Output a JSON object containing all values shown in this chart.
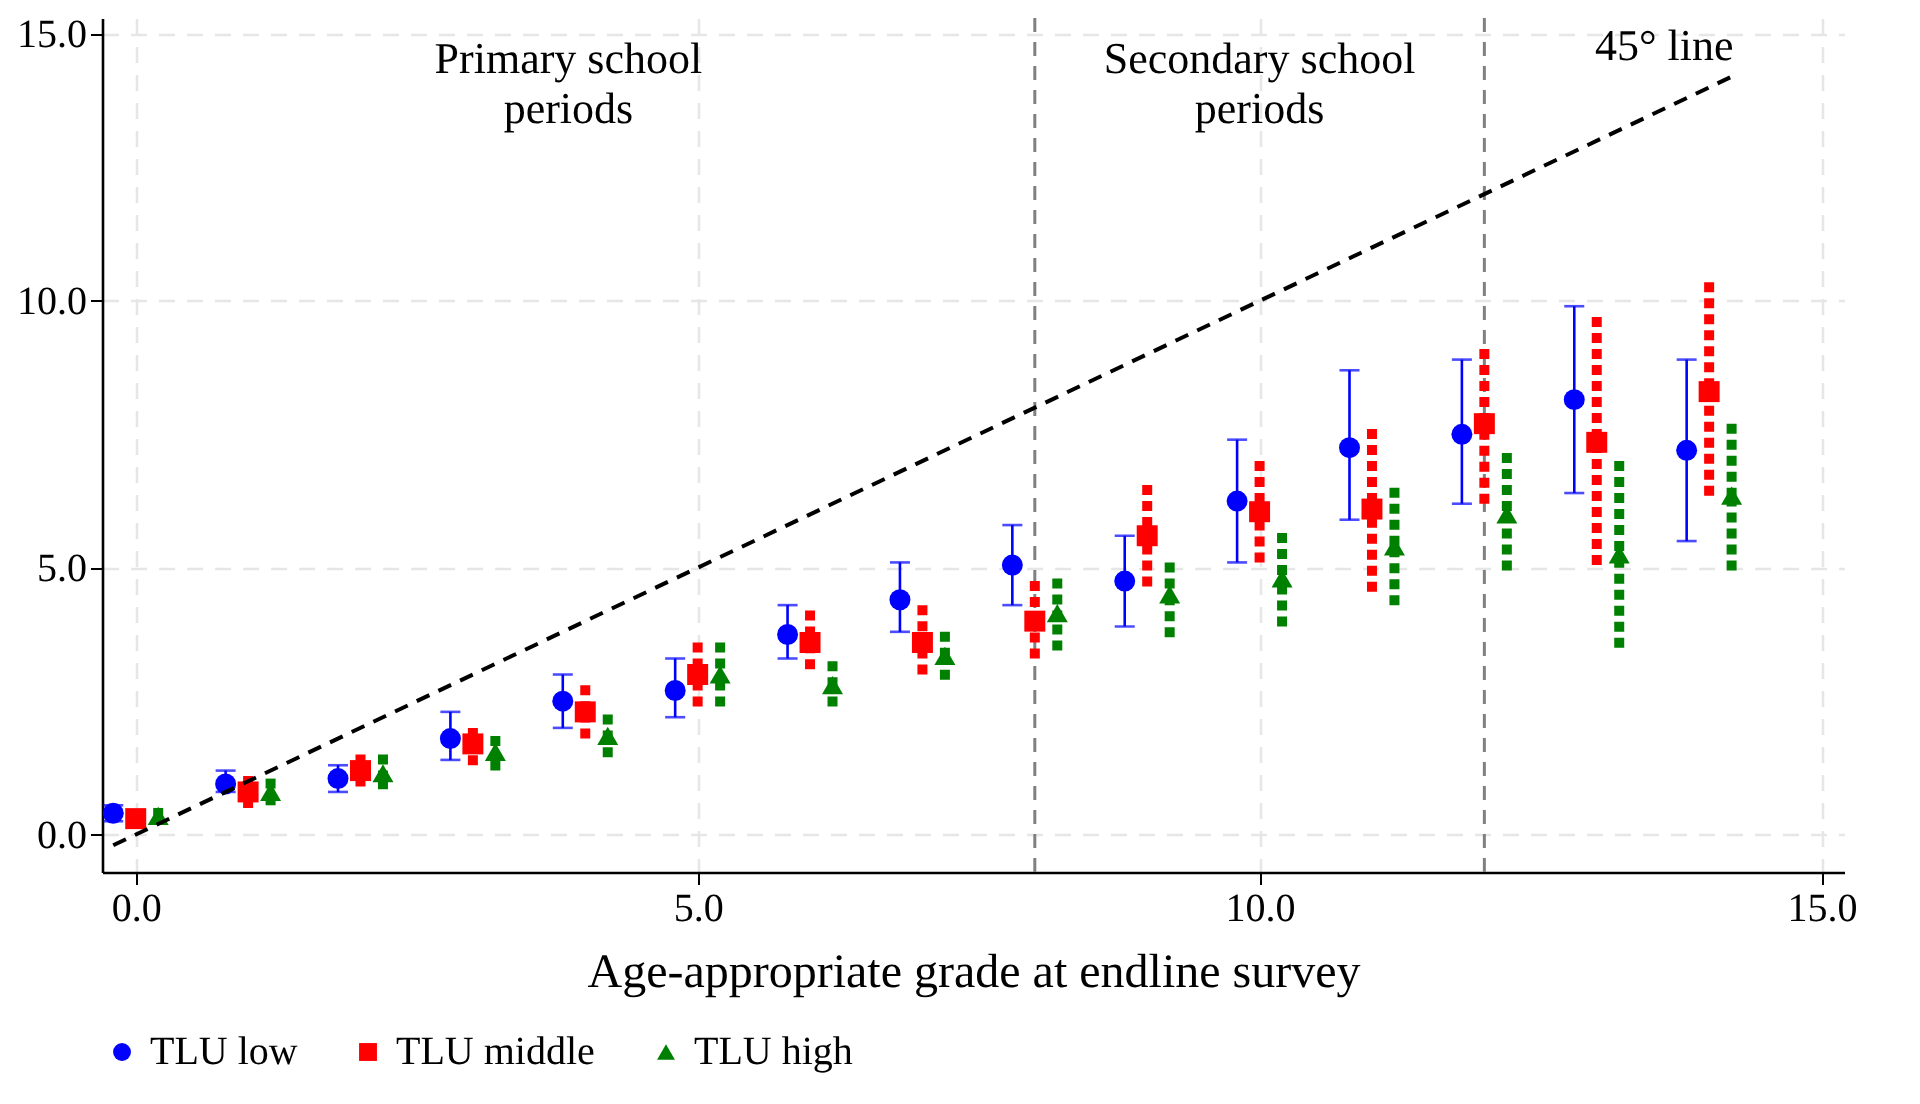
{
  "chart_data": {
    "type": "scatter",
    "xlabel": "Age-appropriate grade at endline survey",
    "xlim": [
      -0.3,
      15.2
    ],
    "ylim": [
      -0.7,
      15.3
    ],
    "xticks": [
      {
        "value": 0,
        "label": "0.0"
      },
      {
        "value": 5,
        "label": "5.0"
      },
      {
        "value": 10,
        "label": "10.0"
      },
      {
        "value": 15,
        "label": "15.0"
      }
    ],
    "yticks": [
      {
        "value": 0,
        "label": "0.0"
      },
      {
        "value": 5,
        "label": "5.0"
      },
      {
        "value": 10,
        "label": "10.0"
      },
      {
        "value": 15,
        "label": "15.0"
      }
    ],
    "grid": true,
    "legend": "bottom",
    "series": [
      {
        "name": "TLU low",
        "color": "#0000ff",
        "marker": "circle",
        "line_style": "solid",
        "x": [
          -0.2,
          0.8,
          1.8,
          2.8,
          3.8,
          4.8,
          5.8,
          6.8,
          7.8,
          8.8,
          9.8,
          10.8,
          11.8,
          12.8,
          13.8
        ],
        "values": [
          0.4,
          0.95,
          1.05,
          1.8,
          2.5,
          2.7,
          3.75,
          4.4,
          5.05,
          4.75,
          6.25,
          7.25,
          7.5,
          8.15,
          7.2
        ],
        "errors": [
          [
            0.25,
            0.55
          ],
          [
            0.8,
            1.2
          ],
          [
            0.8,
            1.3
          ],
          [
            1.4,
            2.3
          ],
          [
            2.0,
            3.0
          ],
          [
            2.2,
            3.3
          ],
          [
            3.3,
            4.3
          ],
          [
            3.8,
            5.1
          ],
          [
            4.3,
            5.8
          ],
          [
            3.9,
            5.6
          ],
          [
            5.1,
            7.4
          ],
          [
            5.9,
            8.7
          ],
          [
            6.2,
            8.9
          ],
          [
            6.4,
            9.9
          ],
          [
            5.5,
            8.9
          ]
        ]
      },
      {
        "name": "TLU middle",
        "color": "#ff0000",
        "marker": "square",
        "line_style": "dashed",
        "x": [
          0,
          1,
          2,
          3,
          4,
          5,
          6,
          7,
          8,
          9,
          10,
          11,
          12,
          13,
          14
        ],
        "values": [
          0.3,
          0.8,
          1.2,
          1.7,
          2.3,
          3.0,
          3.6,
          3.6,
          4.0,
          5.6,
          6.05,
          6.1,
          7.7,
          7.35,
          8.3
        ],
        "errors": [
          [
            0.15,
            0.45
          ],
          [
            0.5,
            1.1
          ],
          [
            0.9,
            1.5
          ],
          [
            1.3,
            2.0
          ],
          [
            1.8,
            2.8
          ],
          [
            2.4,
            3.6
          ],
          [
            3.1,
            4.2
          ],
          [
            3.0,
            4.3
          ],
          [
            3.3,
            4.75
          ],
          [
            4.65,
            6.55
          ],
          [
            5.1,
            7.0
          ],
          [
            4.55,
            7.6
          ],
          [
            6.2,
            9.1
          ],
          [
            5.05,
            9.7
          ],
          [
            6.35,
            10.35
          ]
        ]
      },
      {
        "name": "TLU high",
        "color": "#008000",
        "marker": "triangle",
        "line_style": "dashed",
        "x": [
          0.2,
          1.2,
          2.2,
          3.2,
          4.2,
          5.2,
          6.2,
          7.2,
          8.2,
          9.2,
          10.2,
          11.2,
          12.2,
          13.2,
          14.2
        ],
        "values": [
          0.35,
          0.8,
          1.15,
          1.55,
          1.85,
          3.0,
          2.8,
          3.35,
          4.15,
          4.5,
          4.8,
          5.4,
          6.0,
          5.25,
          6.35
        ],
        "errors": [
          [
            0.2,
            0.5
          ],
          [
            0.55,
            1.05
          ],
          [
            0.85,
            1.5
          ],
          [
            1.2,
            1.85
          ],
          [
            1.45,
            2.25
          ],
          [
            2.4,
            3.6
          ],
          [
            2.4,
            3.25
          ],
          [
            2.9,
            3.8
          ],
          [
            3.45,
            4.8
          ],
          [
            3.7,
            5.1
          ],
          [
            3.9,
            5.65
          ],
          [
            4.3,
            6.5
          ],
          [
            4.95,
            7.15
          ],
          [
            3.5,
            7.0
          ],
          [
            4.95,
            7.7
          ]
        ]
      },
      {
        "type": "line",
        "color": "#000000",
        "line_style": "dashed",
        "x": [
          -0.2,
          14.2
        ],
        "values": [
          -0.2,
          14.2
        ]
      }
    ],
    "ref_lines": [
      {
        "axis": "x",
        "value": 8,
        "color": "#808080",
        "line_style": "dashed"
      },
      {
        "axis": "x",
        "value": 12,
        "color": "#808080",
        "line_style": "dashed"
      }
    ],
    "annotations": [
      "Primary school\nperiods",
      "Secondary school\nperiods",
      "45° line"
    ]
  }
}
